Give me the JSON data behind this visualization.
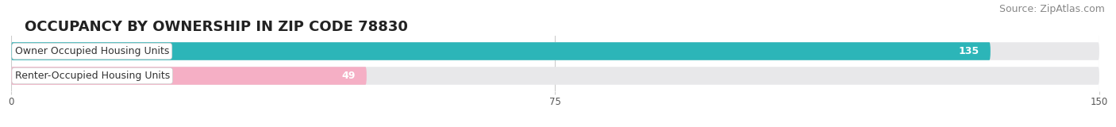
{
  "title": "OCCUPANCY BY OWNERSHIP IN ZIP CODE 78830",
  "source": "Source: ZipAtlas.com",
  "categories": [
    "Owner Occupied Housing Units",
    "Renter-Occupied Housing Units"
  ],
  "values": [
    135,
    49
  ],
  "bar_colors": [
    "#2cb5b8",
    "#f5afc5"
  ],
  "xlim": [
    0,
    150
  ],
  "xticks": [
    0,
    75,
    150
  ],
  "background_color": "#ffffff",
  "bar_bg_color": "#e8e8ea",
  "title_fontsize": 13,
  "source_fontsize": 9,
  "label_fontsize": 9,
  "value_fontsize": 9
}
